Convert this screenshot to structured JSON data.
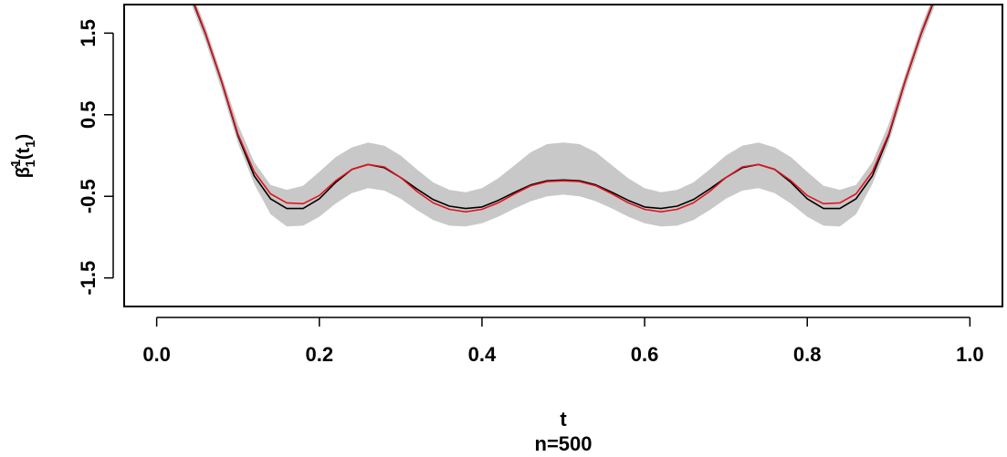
{
  "chart_data": {
    "type": "line",
    "title": "",
    "xlabel": "t",
    "subtitle": "n=500",
    "ylabel_main": "β̂",
    "ylabel_sup": "1",
    "ylabel_sub": "1",
    "ylabel_arg_open": "(t",
    "ylabel_arg_sub": "1",
    "ylabel_arg_close": ")",
    "xlim": [
      -0.04,
      1.04
    ],
    "ylim": [
      -1.85,
      1.85
    ],
    "x_ticks": [
      0.0,
      0.2,
      0.4,
      0.6,
      0.8,
      1.0
    ],
    "x_tick_labels": [
      "0.0",
      "0.2",
      "0.4",
      "0.6",
      "0.8",
      "1.0"
    ],
    "y_ticks": [
      -1.5,
      -0.5,
      0.5,
      1.5
    ],
    "y_tick_labels": [
      "-1.5",
      "-0.5",
      "0.5",
      "1.5"
    ],
    "colors": {
      "band": "#c8c8c8",
      "truth": "#000000",
      "estimate": "#e0141e"
    },
    "x": [
      0.02,
      0.04,
      0.06,
      0.08,
      0.1,
      0.12,
      0.14,
      0.16,
      0.18,
      0.2,
      0.22,
      0.24,
      0.26,
      0.28,
      0.3,
      0.32,
      0.34,
      0.36,
      0.38,
      0.4,
      0.42,
      0.44,
      0.46,
      0.48,
      0.5,
      0.52,
      0.54,
      0.56,
      0.58,
      0.6,
      0.62,
      0.64,
      0.66,
      0.68,
      0.7,
      0.72,
      0.74,
      0.76,
      0.78,
      0.8,
      0.82,
      0.84,
      0.86,
      0.88,
      0.9,
      0.92,
      0.94,
      0.96,
      0.98
    ],
    "series": [
      {
        "role": "band",
        "lower": [
          2.35,
          1.92,
          1.4,
          0.8,
          0.15,
          -0.35,
          -0.72,
          -0.87,
          -0.86,
          -0.75,
          -0.59,
          -0.46,
          -0.4,
          -0.43,
          -0.53,
          -0.67,
          -0.79,
          -0.86,
          -0.87,
          -0.83,
          -0.75,
          -0.65,
          -0.56,
          -0.5,
          -0.48,
          -0.5,
          -0.56,
          -0.65,
          -0.75,
          -0.83,
          -0.87,
          -0.86,
          -0.79,
          -0.67,
          -0.53,
          -0.43,
          -0.4,
          -0.46,
          -0.59,
          -0.75,
          -0.86,
          -0.87,
          -0.72,
          -0.35,
          0.15,
          0.8,
          1.4,
          1.92,
          2.35
        ],
        "upper": [
          2.55,
          2.08,
          1.58,
          0.98,
          0.38,
          -0.08,
          -0.36,
          -0.42,
          -0.37,
          -0.2,
          -0.02,
          0.1,
          0.16,
          0.12,
          0.0,
          -0.17,
          -0.33,
          -0.42,
          -0.45,
          -0.4,
          -0.28,
          -0.12,
          0.04,
          0.14,
          0.16,
          0.14,
          0.04,
          -0.12,
          -0.28,
          -0.4,
          -0.45,
          -0.42,
          -0.33,
          -0.17,
          0.0,
          0.12,
          0.16,
          0.1,
          -0.02,
          -0.2,
          -0.37,
          -0.42,
          -0.36,
          -0.08,
          0.38,
          0.98,
          1.58,
          2.08,
          2.55
        ]
      },
      {
        "role": "truth",
        "values": [
          2.45,
          2.0,
          1.49,
          0.9,
          0.24,
          -0.25,
          -0.53,
          -0.65,
          -0.65,
          -0.53,
          -0.33,
          -0.17,
          -0.11,
          -0.15,
          -0.27,
          -0.41,
          -0.54,
          -0.62,
          -0.65,
          -0.63,
          -0.55,
          -0.45,
          -0.36,
          -0.31,
          -0.3,
          -0.31,
          -0.36,
          -0.45,
          -0.55,
          -0.63,
          -0.65,
          -0.62,
          -0.54,
          -0.41,
          -0.27,
          -0.15,
          -0.11,
          -0.17,
          -0.33,
          -0.53,
          -0.65,
          -0.65,
          -0.53,
          -0.25,
          0.24,
          0.9,
          1.49,
          2.0,
          2.45
        ]
      },
      {
        "role": "estimate",
        "values": [
          2.47,
          2.02,
          1.5,
          0.91,
          0.26,
          -0.2,
          -0.47,
          -0.58,
          -0.59,
          -0.49,
          -0.31,
          -0.17,
          -0.11,
          -0.14,
          -0.27,
          -0.44,
          -0.58,
          -0.66,
          -0.69,
          -0.66,
          -0.58,
          -0.47,
          -0.37,
          -0.32,
          -0.31,
          -0.32,
          -0.37,
          -0.47,
          -0.58,
          -0.66,
          -0.69,
          -0.66,
          -0.58,
          -0.44,
          -0.27,
          -0.14,
          -0.11,
          -0.17,
          -0.31,
          -0.49,
          -0.59,
          -0.58,
          -0.47,
          -0.2,
          0.26,
          0.91,
          1.5,
          2.02,
          2.47
        ]
      }
    ]
  }
}
